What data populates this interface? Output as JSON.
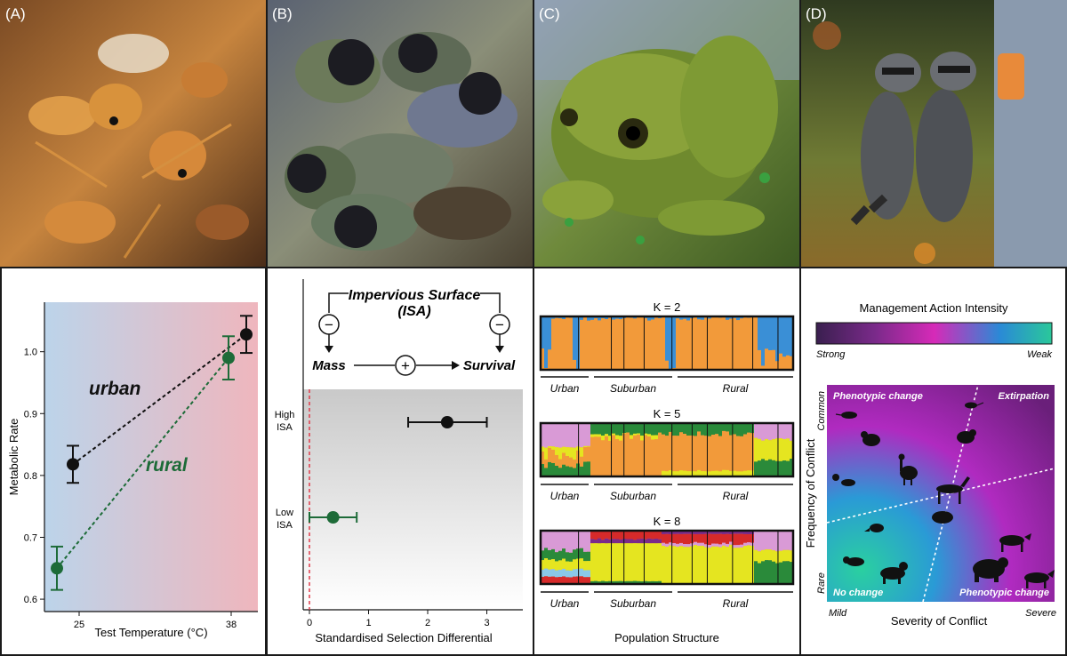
{
  "panel_labels": [
    "(A)",
    "(B)",
    "(C)",
    "(D)"
  ],
  "photos": [
    {
      "subject": "ants",
      "icon": "ant-colony-photo"
    },
    {
      "subject": "nestlings",
      "icon": "bird-nest-photo"
    },
    {
      "subject": "frog",
      "icon": "frog-photo"
    },
    {
      "subject": "raccoons",
      "icon": "raccoon-photo"
    }
  ],
  "panel_a": {
    "ylabel": "Metabolic Rate",
    "xlabel": "Test Temperature (°C)",
    "yticks": [
      "0.6",
      "0.7",
      "0.8",
      "0.9",
      "1.0"
    ],
    "xticks": [
      "25",
      "38"
    ],
    "urban_label": "urban",
    "rural_label": "rural",
    "colors": {
      "urban": "#111111",
      "rural": "#1d6b38",
      "bg_left": "#bcd4ea",
      "bg_right": "#efb6bd"
    }
  },
  "panel_b": {
    "title_line1": "Impervious Surface",
    "title_line2": "(ISA)",
    "mass_label": "Mass",
    "survival_label": "Survival",
    "minus_symbol": "−",
    "plus_symbol": "+",
    "row_high": [
      "High",
      "ISA"
    ],
    "row_low": [
      "Low",
      "ISA"
    ],
    "xlabel": "Standardised Selection Differential",
    "xticks": [
      "0",
      "1",
      "2",
      "3"
    ]
  },
  "panel_c": {
    "k_labels": [
      "K = 2",
      "K = 5",
      "K = 8"
    ],
    "group_labels": [
      "Urban",
      "Suburban",
      "Rural"
    ],
    "xlabel": "Population Structure",
    "colors": [
      "#f29a3a",
      "#3a8fd6",
      "#e5e520",
      "#2a8a3a",
      "#d99ad6",
      "#d62a2a",
      "#7a2a8a",
      "#8ac8e8"
    ]
  },
  "panel_d": {
    "colorbar_title": "Management Action Intensity",
    "strong_label": "Strong",
    "weak_label": "Weak",
    "ylabel": "Frequency of Conflict",
    "xlabel": "Severity of Conflict",
    "y_low": "Rare",
    "y_high": "Common",
    "x_low": "Mild",
    "x_high": "Severe",
    "quadrants": {
      "top_left": "Phenotypic change",
      "top_right": "Extirpation",
      "bottom_left": "No change",
      "bottom_right": "Phenotypic change"
    }
  },
  "chart_data": [
    {
      "type": "scatter",
      "xlabel": "Test Temperature (°C)",
      "ylabel": "Metabolic Rate",
      "x": [
        25,
        38
      ],
      "ylim": [
        0.58,
        1.08
      ],
      "series": [
        {
          "name": "urban",
          "points": [
            {
              "x": 25,
              "y": 0.818,
              "err": 0.03
            },
            {
              "x": 38,
              "y": 1.028,
              "err": 0.03
            }
          ]
        },
        {
          "name": "rural",
          "points": [
            {
              "x": 25,
              "y": 0.65,
              "err": 0.035
            },
            {
              "x": 38,
              "y": 0.99,
              "err": 0.035
            }
          ]
        }
      ]
    },
    {
      "type": "scatter",
      "xlabel": "Standardised Selection Differential",
      "xlim": [
        -0.15,
        3.6
      ],
      "categories": [
        "High ISA",
        "Low ISA"
      ],
      "values": [
        2.33,
        0.4
      ],
      "err_low": [
        1.67,
        0.0
      ],
      "err_high": [
        3.0,
        0.8
      ]
    }
  ]
}
